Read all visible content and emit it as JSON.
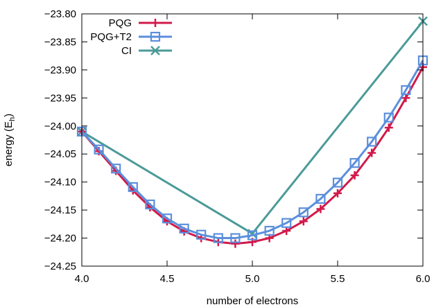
{
  "chart_data": {
    "type": "line",
    "xlabel": "number of electrons",
    "ylabel_main": "energy (E",
    "ylabel_sub": "h",
    "ylabel_close": ")",
    "xlim": [
      4.0,
      6.0
    ],
    "ylim": [
      -24.25,
      -23.8
    ],
    "xticks": [
      4.0,
      4.5,
      5.0,
      5.5,
      6.0
    ],
    "xtick_labels": [
      "4.0",
      "4.5",
      "5.0",
      "5.5",
      "6.0"
    ],
    "yticks": [
      -24.25,
      -24.2,
      -24.15,
      -24.1,
      -24.05,
      -24.0,
      -23.95,
      -23.9,
      -23.85,
      -23.8
    ],
    "ytick_labels": [
      "−24.25",
      "−24.20",
      "−24.15",
      "−24.10",
      "−24.05",
      "−24.00",
      "−23.95",
      "−23.90",
      "−23.85",
      "−23.80"
    ],
    "grid": false,
    "legend_position": "top-left",
    "series": [
      {
        "name": "PQG",
        "color": "#d11a4a",
        "marker": "plus",
        "x": [
          4.0,
          4.1,
          4.2,
          4.3,
          4.4,
          4.5,
          4.6,
          4.7,
          4.8,
          4.9,
          5.0,
          5.1,
          5.2,
          5.3,
          5.4,
          5.5,
          5.6,
          5.7,
          5.8,
          5.9,
          6.0
        ],
        "y": [
          -24.01,
          -24.045,
          -24.08,
          -24.115,
          -24.145,
          -24.17,
          -24.188,
          -24.2,
          -24.207,
          -24.21,
          -24.207,
          -24.2,
          -24.187,
          -24.17,
          -24.148,
          -24.12,
          -24.088,
          -24.048,
          -24.003,
          -23.95,
          -23.895
        ]
      },
      {
        "name": "PQG+T2",
        "color": "#5b8fdc",
        "marker": "square",
        "x": [
          4.0,
          4.1,
          4.2,
          4.3,
          4.4,
          4.5,
          4.6,
          4.7,
          4.8,
          4.9,
          5.0,
          5.1,
          5.2,
          5.3,
          5.4,
          5.5,
          5.6,
          5.7,
          5.8,
          5.9,
          6.0
        ],
        "y": [
          -24.01,
          -24.042,
          -24.076,
          -24.109,
          -24.14,
          -24.165,
          -24.183,
          -24.194,
          -24.2,
          -24.2,
          -24.195,
          -24.187,
          -24.173,
          -24.154,
          -24.13,
          -24.101,
          -24.066,
          -24.028,
          -23.985,
          -23.936,
          -23.883
        ]
      },
      {
        "name": "CI",
        "color": "#4a9a98",
        "marker": "x",
        "x": [
          4.0,
          5.0,
          6.0
        ],
        "y": [
          -24.01,
          -24.192,
          -23.813
        ]
      }
    ]
  }
}
